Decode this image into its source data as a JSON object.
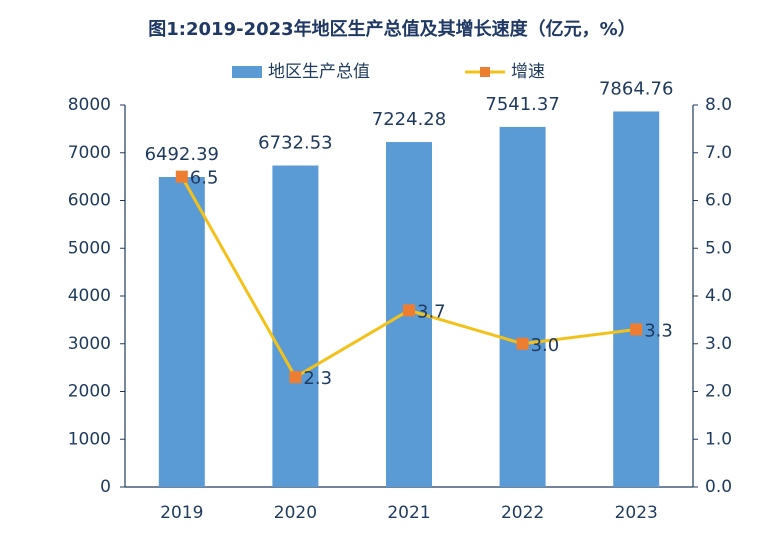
{
  "chart_data": {
    "type": "bar",
    "title": "图1:2019-2023年地区生产总值及其增长速度（亿元，%）",
    "categories": [
      "2019",
      "2020",
      "2021",
      "2022",
      "2023"
    ],
    "series": [
      {
        "name": "地区生产总值",
        "type": "bar",
        "color": "#5b9bd5",
        "values": [
          6492.39,
          6732.53,
          7224.28,
          7541.37,
          7864.76
        ]
      },
      {
        "name": "增速",
        "type": "line",
        "axis": "y2",
        "color": "#f2c21a",
        "marker_color": "#ed7d31",
        "values": [
          6.5,
          2.3,
          3.7,
          3.0,
          3.3
        ],
        "value_labels": [
          "6.5",
          "2.3",
          "3.7",
          "3.0",
          "3.3"
        ]
      }
    ],
    "ylim": [
      0,
      8000
    ],
    "yticks": [
      0,
      1000,
      2000,
      3000,
      4000,
      5000,
      6000,
      7000,
      8000
    ],
    "y2lim": [
      0,
      8
    ],
    "y2ticks": [
      {
        "value": 0,
        "label": "0.0"
      },
      {
        "value": 1,
        "label": "1.0"
      },
      {
        "value": 2,
        "label": "2.0"
      },
      {
        "value": 3,
        "label": "3.0"
      },
      {
        "value": 4,
        "label": "4.0"
      },
      {
        "value": 5,
        "label": "5.0"
      },
      {
        "value": 6,
        "label": "6.0"
      },
      {
        "value": 7,
        "label": "7.0"
      },
      {
        "value": 8,
        "label": "8.0"
      }
    ],
    "grid": false,
    "legend": "top"
  }
}
